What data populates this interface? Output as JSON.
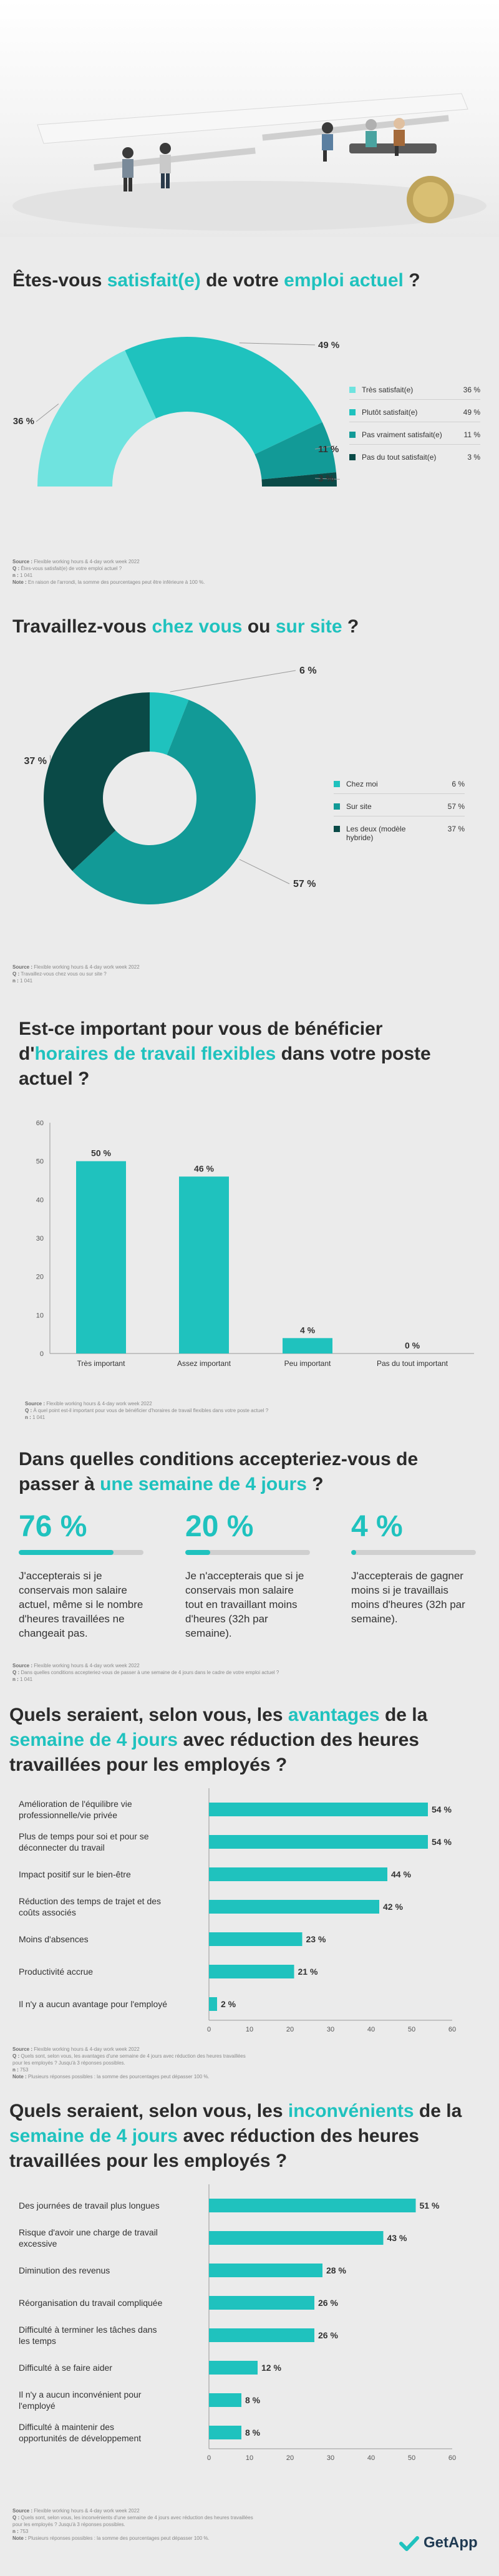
{
  "colors": {
    "teal": "#1fc2be",
    "light_teal": "#6fe3df",
    "mid_teal": "#129a97",
    "dark_teal": "#0c6b68",
    "darkest_teal": "#0a4a47",
    "grey_bar": "#cfcfcf"
  },
  "q1": {
    "title_before": "Êtes-vous ",
    "title_hl1": "satisfait(e)",
    "title_mid": " de votre ",
    "title_hl2": "emploi actuel",
    "title_after": " ?",
    "note_source": "Source :",
    "note_source_text": " Flexible working hours & 4-day work week 2022",
    "note_q": "Q :",
    "note_q_text": " Êtes-vous satisfait(e) de votre emploi actuel ?",
    "note_n": "n :",
    "note_n_text": " 1 041",
    "note_note": "Note :",
    "note_note_text": " En raison de l'arrondi, la somme des pourcentages peut être inférieure à 100 %."
  },
  "q2": {
    "title_before": "Travaillez-vous ",
    "title_hl1": "chez vous",
    "title_mid": " ou ",
    "title_hl2": "sur site",
    "title_after": " ?",
    "note_source": "Source :",
    "note_source_text": " Flexible working hours & 4-day work week 2022",
    "note_q": "Q :",
    "note_q_text": " Travaillez-vous chez vous ou sur site ?",
    "note_n": "n :",
    "note_n_text": " 1 041"
  },
  "q3": {
    "title_l1": "Est-ce important pour vous de bénéficier",
    "title_l2_before": "d'",
    "title_l2_hl": "horaires de travail flexibles",
    "title_l2_after": " dans votre poste",
    "title_l3": "actuel ?",
    "note_source": "Source :",
    "note_source_text": " Flexible working hours & 4-day work week 2022",
    "note_q": "Q :",
    "note_q_text": " À quel point est-il important pour vous de bénéficier d'horaires de travail flexibles dans votre poste actuel ?",
    "note_n": "n :",
    "note_n_text": " 1 041"
  },
  "q4": {
    "title_l1": "Dans quelles conditions accepteriez-vous de",
    "title_l2_before": "passer à ",
    "title_l2_hl": "une semaine de 4 jours",
    "title_l2_after": " ?",
    "stats": [
      {
        "pct": "76 %",
        "value": 76,
        "text": "J'accepterais si je conservais mon salaire actuel, même si le nombre d'heures travaillées ne changeait pas."
      },
      {
        "pct": "20 %",
        "value": 20,
        "text": "Je n'accepterais que si je conservais mon salaire tout en travaillant moins d'heures (32h par semaine)."
      },
      {
        "pct": "4 %",
        "value": 4,
        "text": "J'accepterais de gagner moins si je travaillais moins d'heures (32h par semaine)."
      }
    ],
    "note_source": "Source :",
    "note_source_text": " Flexible working hours & 4-day work week 2022",
    "note_q": "Q :",
    "note_q_text": " Dans quelles conditions accepteriez-vous de passer à une semaine de 4 jours dans le cadre de votre emploi actuel ?",
    "note_n": "n :",
    "note_n_text": " 1 041"
  },
  "q5": {
    "title_l1_before": "Quels seraient, selon vous, les ",
    "title_l1_hl": "avantages",
    "title_l1_after": " de la",
    "title_l2_hl": "semaine de 4 jours",
    "title_l2_after": " avec réduction des heures",
    "title_l3": "travaillées pour les employés ?",
    "note_source": "Source :",
    "note_source_text": " Flexible working hours & 4-day work week 2022",
    "note_q": "Q :",
    "note_q_text": " Quels sont, selon vous, les avantages d'une semaine de 4 jours avec réduction des heures travaillées",
    "note_q2": "pour les employés ? Jusqu'à 3 réponses possibles.",
    "note_n": "n :",
    "note_n_text": " 753",
    "note_note": "Note :",
    "note_note_text": " Plusieurs réponses possibles : la somme des pourcentages peut dépasser 100 %."
  },
  "q6": {
    "title_l1_before": "Quels seraient, selon vous, les ",
    "title_l1_hl": "inconvénients",
    "title_l1_after": " de la",
    "title_l2_hl": "semaine de 4 jours",
    "title_l2_after": " avec réduction des heures",
    "title_l3": "travaillées pour les employés ?",
    "note_source": "Source :",
    "note_source_text": " Flexible working hours & 4-day work week 2022",
    "note_q": "Q :",
    "note_q_text": " Quels sont, selon vous, les inconvénients d'une semaine de 4 jours avec réduction des heures travaillées",
    "note_q2": "pour les employés ? Jusqu'à 3 réponses possibles.",
    "note_n": "n :",
    "note_n_text": " 753",
    "note_note": "Note :",
    "note_note_text": " Plusieurs réponses possibles : la somme des pourcentages peut dépasser 100 %."
  },
  "brand": {
    "logo": "GetApp"
  },
  "chart_data": [
    {
      "type": "pie",
      "categories": [
        "Très satisfait(e)",
        "Plutôt satisfait(e)",
        "Pas vraiment satisfait(e)",
        "Pas du tout satisfait(e)"
      ],
      "values": [
        36,
        49,
        11,
        3
      ],
      "value_labels": [
        "36 %",
        "49 %",
        "11 %",
        "3 %"
      ],
      "colors": [
        "#6fe3df",
        "#1fc2be",
        "#129a97",
        "#0a4a47"
      ],
      "legend_position": "right"
    },
    {
      "type": "pie",
      "categories": [
        "Chez moi",
        "Sur site",
        "Les deux (modèle hybride)"
      ],
      "values": [
        6,
        57,
        37
      ],
      "value_labels": [
        "6 %",
        "57 %",
        "37 %"
      ],
      "colors": [
        "#1fc2be",
        "#129a97",
        "#0a4a47"
      ],
      "legend_position": "right"
    },
    {
      "type": "bar",
      "categories": [
        "Très important",
        "Assez important",
        "Peu important",
        "Pas du tout important"
      ],
      "values": [
        50,
        46,
        4,
        0
      ],
      "value_labels": [
        "50 %",
        "46 %",
        "4 %",
        "0 %"
      ],
      "ylim": [
        0,
        60
      ],
      "yticks": [
        "0",
        "10",
        "20",
        "30",
        "40",
        "50",
        "60"
      ],
      "grid": false
    },
    {
      "type": "bar",
      "orientation": "horizontal",
      "categories": [
        "Amélioration de l'équilibre vie professionnelle/vie privée",
        "Plus de temps pour soi et pour se déconnecter du travail",
        "Impact positif sur le bien-être",
        "Réduction des temps de trajet et des coûts associés",
        "Moins d'absences",
        "Productivité accrue",
        "Il n'y a aucun avantage pour l'employé"
      ],
      "values": [
        54,
        54,
        44,
        42,
        23,
        21,
        2
      ],
      "value_labels": [
        "54 %",
        "54 %",
        "44 %",
        "42 %",
        "23 %",
        "21 %",
        "2 %"
      ],
      "xlim": [
        0,
        60
      ],
      "xticks": [
        "0",
        "10",
        "20",
        "30",
        "40",
        "50",
        "60"
      ]
    },
    {
      "type": "bar",
      "orientation": "horizontal",
      "categories": [
        "Des journées de travail plus longues",
        "Risque d'avoir une charge de travail excessive",
        "Diminution des revenus",
        "Réorganisation du travail compliquée",
        "Difficulté à terminer les tâches dans les temps",
        "Difficulté à se faire aider",
        "Il n'y a aucun inconvénient pour l'employé",
        "Difficulté à maintenir des opportunités de développement"
      ],
      "values": [
        51,
        43,
        28,
        26,
        26,
        12,
        8,
        8
      ],
      "value_labels": [
        "51 %",
        "43 %",
        "28 %",
        "26 %",
        "26 %",
        "12 %",
        "8 %",
        "8 %"
      ],
      "xlim": [
        0,
        60
      ],
      "xticks": [
        "0",
        "10",
        "20",
        "30",
        "40",
        "50",
        "60"
      ]
    }
  ]
}
